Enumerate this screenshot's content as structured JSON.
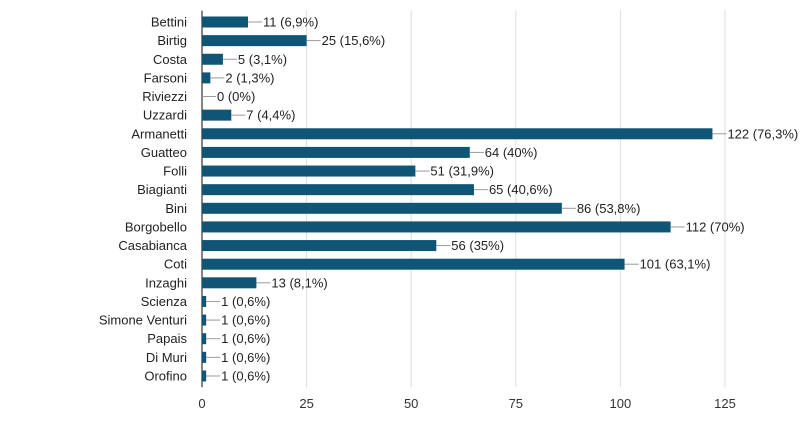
{
  "chart_data": {
    "type": "bar",
    "orientation": "horizontal",
    "title": "",
    "xlabel": "",
    "ylabel": "",
    "xlim": [
      0,
      125
    ],
    "xticks": [
      0,
      25,
      50,
      75,
      100,
      125
    ],
    "grid": "vertical",
    "bar_color": "#0f5575",
    "categories": [
      "Bettini",
      "Birtig",
      "Costa",
      "Farsoni",
      "Riviezzi",
      "Uzzardi",
      "Armanetti",
      "Guatteo",
      "Folli",
      "Biagianti",
      "Bini",
      "Borgobello",
      "Casabianca",
      "Coti",
      "Inzaghi",
      "Scienza",
      "Simone Venturi",
      "Papais",
      "Di Muri",
      "Orofino"
    ],
    "values": [
      11,
      25,
      5,
      2,
      0,
      7,
      122,
      64,
      51,
      65,
      86,
      112,
      56,
      101,
      13,
      1,
      1,
      1,
      1,
      1
    ],
    "data_labels": [
      "11 (6,9%)",
      "25 (15,6%)",
      "5 (3,1%)",
      "2 (1,3%)",
      "0 (0%)",
      "7 (4,4%)",
      "122 (76,3%)",
      "64 (40%)",
      "51 (31,9%)",
      "65 (40,6%)",
      "86 (53,8%)",
      "112 (70%)",
      "56 (35%)",
      "101 (63,1%)",
      "13 (8,1%)",
      "1 (0,6%)",
      "1 (0,6%)",
      "1 (0,6%)",
      "1 (0,6%)",
      "1 (0,6%)"
    ]
  }
}
